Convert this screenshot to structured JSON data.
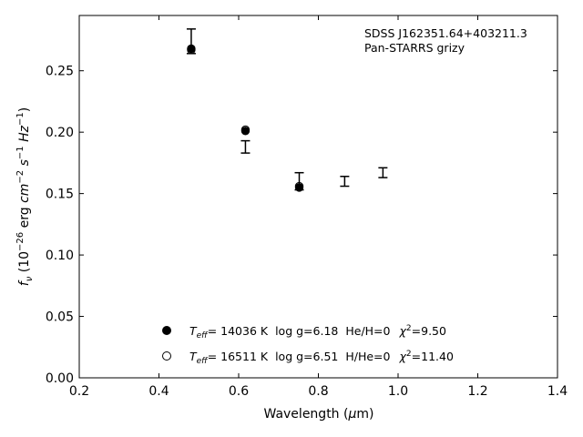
{
  "chart_data": {
    "type": "scatter",
    "xlabel": "Wavelength (μm)",
    "ylabel": "f_ν (10^−26 erg cm^−2 s^−1 Hz^−1)",
    "xlim": [
      0.2,
      1.4
    ],
    "ylim": [
      0.0,
      0.295
    ],
    "xticks": [
      "0.2",
      "0.4",
      "0.6",
      "0.8",
      "1.0",
      "1.2",
      "1.4"
    ],
    "yticks": [
      "0.00",
      "0.05",
      "0.10",
      "0.15",
      "0.20",
      "0.25"
    ],
    "annotation": [
      "SDSS J162351.64+403211.3",
      "Pan-STARRS grizy"
    ],
    "observed": {
      "x": [
        0.481,
        0.617,
        0.752,
        0.866,
        0.962
      ],
      "y": [
        0.274,
        0.188,
        0.16,
        0.16,
        0.167
      ],
      "yerr": [
        0.01,
        0.005,
        0.007,
        0.004,
        0.004
      ]
    },
    "series": [
      {
        "name": "T_eff= 14036 K log g=6.18 He/H=0 χ²=9.50",
        "marker": "filled-circle",
        "x": [
          0.481,
          0.617,
          0.752
        ],
        "y": [
          0.268,
          0.201,
          0.155
        ]
      },
      {
        "name": "T_eff= 16511 K log g=6.51 H/He=0 χ²=11.40",
        "marker": "open-circle",
        "x": [
          0.481,
          0.617,
          0.752
        ],
        "y": [
          0.267,
          0.202,
          0.156
        ]
      }
    ],
    "legend": {
      "placement": "lower-center",
      "entries": [
        {
          "teff_prefix": "T",
          "teff_sub": "eff",
          "teff_val": "= 14036 K",
          "logg": "log g=6.18",
          "comp": "He/H=0",
          "chi_val": "=9.50"
        },
        {
          "teff_prefix": "T",
          "teff_sub": "eff",
          "teff_val": "= 16511 K",
          "logg": "log g=6.51",
          "comp": "H/He=0",
          "chi_val": "=11.40"
        }
      ]
    },
    "grid": false
  }
}
